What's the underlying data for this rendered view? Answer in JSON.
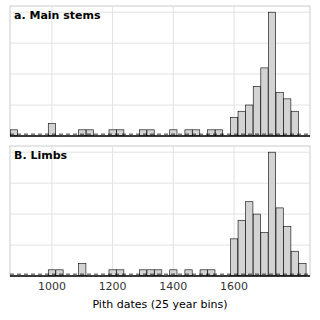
{
  "chart_data": [
    {
      "type": "bar",
      "title": "a. Main stems",
      "x": [
        875,
        900,
        925,
        950,
        975,
        1000,
        1025,
        1050,
        1075,
        1100,
        1125,
        1150,
        1175,
        1200,
        1225,
        1250,
        1275,
        1300,
        1325,
        1350,
        1375,
        1400,
        1425,
        1450,
        1475,
        1500,
        1525,
        1550,
        1575,
        1600,
        1625,
        1650,
        1675,
        1700,
        1725,
        1750,
        1775,
        1800,
        1825
      ],
      "values": [
        1,
        0,
        0,
        0,
        0,
        2,
        0,
        0,
        0,
        1,
        1,
        0,
        0,
        1,
        1,
        0,
        0,
        1,
        1,
        0,
        0,
        1,
        0,
        1,
        1,
        0,
        1,
        1,
        0,
        3,
        4,
        5,
        8,
        11,
        20,
        7,
        6,
        4,
        0
      ],
      "color": "#d3d3d3",
      "xlim": [
        862,
        1850
      ],
      "ylim": [
        0,
        21
      ],
      "xticks": [
        1000,
        1200,
        1400,
        1600
      ],
      "yticks": [
        0,
        5,
        10,
        15,
        20
      ],
      "reference_line": 0.3,
      "grid": true,
      "tick_labels": false
    },
    {
      "type": "bar",
      "title": "B. Limbs",
      "x_label": "Pith dates (25 year bins)",
      "x": [
        875,
        900,
        925,
        950,
        975,
        1000,
        1025,
        1050,
        1075,
        1100,
        1125,
        1150,
        1175,
        1200,
        1225,
        1250,
        1275,
        1300,
        1325,
        1350,
        1375,
        1400,
        1425,
        1450,
        1475,
        1500,
        1525,
        1550,
        1575,
        1600,
        1625,
        1650,
        1675,
        1700,
        1725,
        1750,
        1775,
        1800,
        1825
      ],
      "values": [
        0,
        0,
        0,
        0,
        0,
        1,
        1,
        0,
        0,
        2,
        0,
        0,
        0,
        1,
        1,
        0,
        0,
        1,
        1,
        1,
        0,
        1,
        0,
        1,
        0,
        1,
        1,
        0,
        0,
        6,
        9,
        12,
        10,
        7,
        20,
        11,
        8,
        4,
        2
      ],
      "color": "#d3d3d3",
      "xlim": [
        862,
        1850
      ],
      "ylim": [
        0,
        21
      ],
      "xticks": [
        1000,
        1200,
        1400,
        1600
      ],
      "yticks": [
        0,
        5,
        10,
        15,
        20
      ],
      "reference_line": 0.3,
      "grid": true,
      "tick_labels": "x"
    }
  ]
}
